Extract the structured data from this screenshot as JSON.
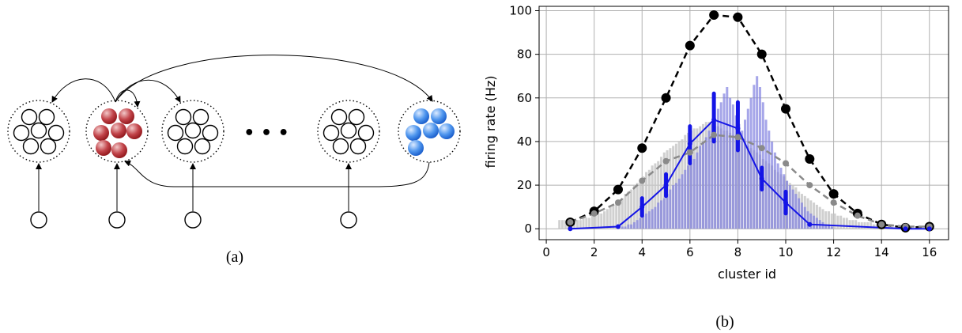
{
  "panel_a": {
    "caption": "(a)",
    "ellipsis": "• • •",
    "clusters": [
      {
        "neurons": "white"
      },
      {
        "neurons": "red"
      },
      {
        "neurons": "white"
      },
      {
        "neurons": "white"
      },
      {
        "neurons": "blue"
      }
    ],
    "colors": {
      "red": "#b5262b",
      "blue": "#3a86e6",
      "outline": "#000000"
    }
  },
  "panel_b": {
    "caption": "(b)"
  },
  "chart_data": {
    "type": "line",
    "xlabel": "cluster id",
    "ylabel": "firing rate (Hz)",
    "xlim": [
      -0.3,
      16.8
    ],
    "ylim": [
      -5,
      102
    ],
    "xticks": [
      0,
      2,
      4,
      6,
      8,
      10,
      12,
      14,
      16
    ],
    "yticks": [
      0,
      20,
      40,
      60,
      80,
      100
    ],
    "grid": true,
    "series": [
      {
        "style": "black-dashed",
        "color": "#000000",
        "x": [
          1,
          2,
          3,
          4,
          5,
          6,
          7,
          8,
          9,
          10,
          11,
          12,
          13,
          14,
          15,
          16
        ],
        "values": [
          3,
          8,
          18,
          37,
          60,
          84,
          98,
          97,
          80,
          55,
          32,
          16,
          7,
          2,
          0.5,
          1
        ]
      },
      {
        "style": "grey-dashed",
        "color": "#8a8a8a",
        "x": [
          1,
          2,
          3,
          4,
          5,
          6,
          7,
          8,
          9,
          10,
          11,
          12,
          13,
          14,
          15,
          16
        ],
        "values": [
          3,
          7,
          12,
          22,
          31,
          35,
          43,
          42,
          37,
          30,
          20,
          12,
          6,
          2,
          1,
          1
        ]
      },
      {
        "style": "blue-solid",
        "color": "#1414e6",
        "x": [
          1,
          3,
          4,
          5,
          6,
          7,
          8,
          9,
          10,
          11,
          15,
          16
        ],
        "values": [
          0,
          1,
          10,
          20,
          39,
          50,
          46,
          23,
          12,
          2,
          0,
          0
        ]
      }
    ],
    "error_bars": {
      "color": "#1414e6",
      "x": [
        4,
        5,
        6,
        7,
        8,
        9,
        10
      ],
      "low": [
        6,
        15,
        30,
        40,
        36,
        18,
        7
      ],
      "high": [
        14,
        25,
        47,
        62,
        58,
        28,
        17
      ]
    },
    "histograms": [
      {
        "color": "#c8c8c8",
        "bin_width": 0.125,
        "x_start": 0.5,
        "values": [
          4,
          4,
          4,
          4,
          4,
          4,
          4,
          4,
          5,
          5,
          5,
          6,
          6,
          7,
          7,
          8,
          9,
          10,
          11,
          12,
          13,
          14,
          16,
          17,
          18,
          20,
          21,
          22,
          24,
          26,
          27,
          29,
          30,
          31,
          33,
          35,
          36,
          37,
          38,
          39,
          40,
          41,
          43,
          44,
          45,
          46,
          46,
          47,
          48,
          49,
          49,
          48,
          47,
          47,
          46,
          45,
          45,
          44,
          43,
          42,
          41,
          40,
          39,
          38,
          37,
          36,
          35,
          34,
          32,
          31,
          30,
          29,
          27,
          26,
          25,
          24,
          22,
          21,
          20,
          19,
          17,
          16,
          15,
          14,
          13,
          12,
          11,
          10,
          9,
          8,
          8,
          7,
          7,
          6,
          6,
          5,
          5,
          4,
          4,
          4,
          3,
          3,
          3,
          3,
          3,
          2,
          2,
          2,
          2,
          2,
          2,
          2
        ]
      },
      {
        "color": "#8080e0",
        "bin_width": 0.125,
        "x_start": 3.0,
        "values": [
          0,
          1,
          1,
          2,
          2,
          3,
          4,
          5,
          6,
          7,
          8,
          9,
          10,
          12,
          13,
          14,
          16,
          18,
          20,
          21,
          23,
          25,
          27,
          29,
          30,
          32,
          35,
          38,
          40,
          42,
          45,
          48,
          50,
          55,
          58,
          62,
          65,
          60,
          57,
          52,
          48,
          45,
          50,
          55,
          60,
          66,
          70,
          65,
          58,
          50,
          45,
          40,
          35,
          30,
          28,
          25,
          22,
          20,
          18,
          16,
          14,
          12,
          10,
          8,
          7,
          6,
          5,
          4,
          3,
          2,
          2,
          1
        ]
      }
    ]
  }
}
